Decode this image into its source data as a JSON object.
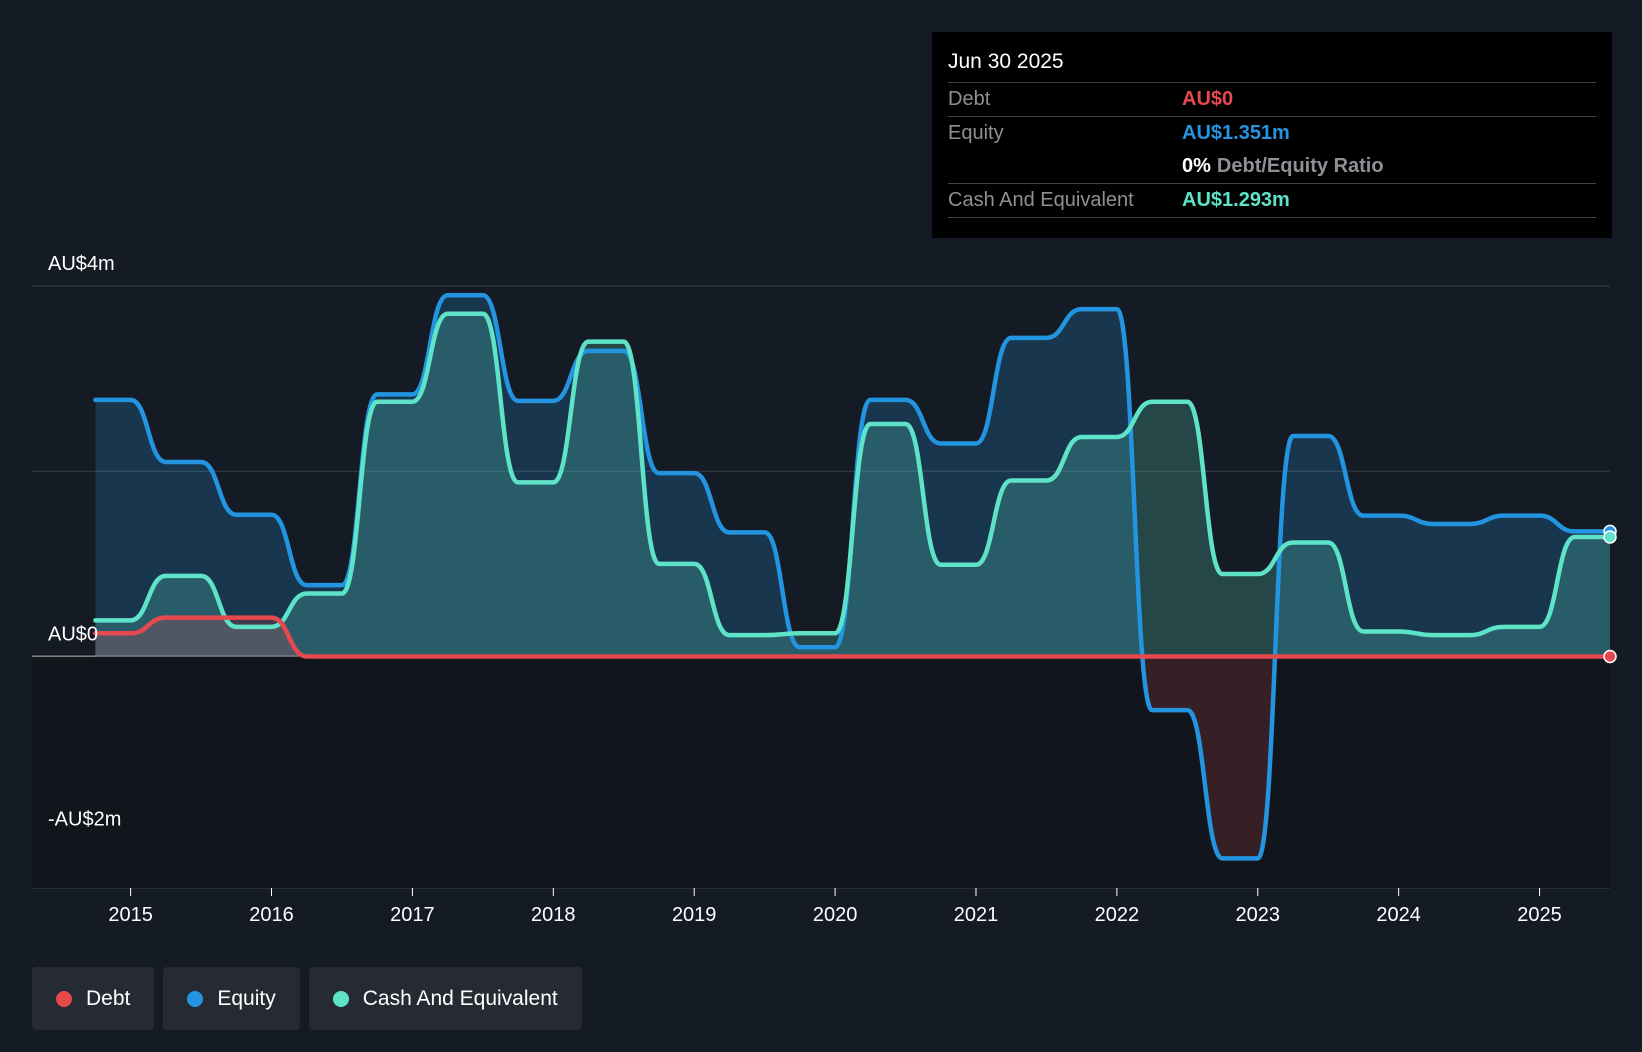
{
  "tooltip": {
    "date": "Jun 30 2025",
    "debt_label": "Debt",
    "debt_value": "AU$0",
    "equity_label": "Equity",
    "equity_value": "AU$1.351m",
    "ratio_value": "0%",
    "ratio_label": "Debt/Equity Ratio",
    "cash_label": "Cash And Equivalent",
    "cash_value": "AU$1.293m"
  },
  "legend": [
    {
      "label": "Debt",
      "color": "#e5484d"
    },
    {
      "label": "Equity",
      "color": "#2394df"
    },
    {
      "label": "Cash And Equivalent",
      "color": "#5ee3c9"
    }
  ],
  "chart_data": {
    "type": "line",
    "title": "",
    "ylim": [
      -2.5,
      4.0
    ],
    "yticks": [
      {
        "value": 4,
        "label": "AU$4m"
      },
      {
        "value": 0,
        "label": "AU$0"
      },
      {
        "value": -2,
        "label": "-AU$2m"
      }
    ],
    "xticks": [
      {
        "value": 2015,
        "label": "2015"
      },
      {
        "value": 2016,
        "label": "2016"
      },
      {
        "value": 2017,
        "label": "2017"
      },
      {
        "value": 2018,
        "label": "2018"
      },
      {
        "value": 2019,
        "label": "2019"
      },
      {
        "value": 2020,
        "label": "2020"
      },
      {
        "value": 2021,
        "label": "2021"
      },
      {
        "value": 2022,
        "label": "2022"
      },
      {
        "value": 2023,
        "label": "2023"
      },
      {
        "value": 2024,
        "label": "2024"
      },
      {
        "value": 2025,
        "label": "2025"
      }
    ],
    "xlim": [
      2014.3,
      2025.5
    ],
    "grid": true,
    "series": [
      {
        "name": "Debt",
        "color": "#e5484d",
        "points": [
          [
            2014.75,
            0.25
          ],
          [
            2015.0,
            0.25
          ],
          [
            2015.25,
            0.42
          ],
          [
            2015.5,
            0.42
          ],
          [
            2015.75,
            0.42
          ],
          [
            2016.0,
            0.42
          ],
          [
            2016.25,
            0.0
          ],
          [
            2016.5,
            0.0
          ],
          [
            2016.75,
            0.0
          ],
          [
            2017.0,
            0.0
          ],
          [
            2018.0,
            0.0
          ],
          [
            2019.0,
            0.0
          ],
          [
            2020.0,
            0.0
          ],
          [
            2021.0,
            0.0
          ],
          [
            2022.0,
            0.0
          ],
          [
            2023.0,
            0.0
          ],
          [
            2024.0,
            0.0
          ],
          [
            2025.0,
            0.0
          ],
          [
            2025.5,
            0.0
          ]
        ]
      },
      {
        "name": "Equity",
        "color": "#2394df",
        "points": [
          [
            2014.75,
            2.77
          ],
          [
            2015.0,
            2.77
          ],
          [
            2015.25,
            2.1
          ],
          [
            2015.5,
            2.1
          ],
          [
            2015.75,
            1.53
          ],
          [
            2016.0,
            1.53
          ],
          [
            2016.25,
            0.77
          ],
          [
            2016.5,
            0.77
          ],
          [
            2016.75,
            2.83
          ],
          [
            2017.0,
            2.83
          ],
          [
            2017.25,
            3.9
          ],
          [
            2017.5,
            3.9
          ],
          [
            2017.75,
            2.76
          ],
          [
            2018.0,
            2.76
          ],
          [
            2018.25,
            3.3
          ],
          [
            2018.5,
            3.3
          ],
          [
            2018.75,
            1.98
          ],
          [
            2019.0,
            1.98
          ],
          [
            2019.25,
            1.34
          ],
          [
            2019.5,
            1.34
          ],
          [
            2019.75,
            0.1
          ],
          [
            2020.0,
            0.1
          ],
          [
            2020.25,
            2.77
          ],
          [
            2020.5,
            2.77
          ],
          [
            2020.75,
            2.3
          ],
          [
            2021.0,
            2.3
          ],
          [
            2021.25,
            3.44
          ],
          [
            2021.5,
            3.44
          ],
          [
            2021.75,
            3.75
          ],
          [
            2022.0,
            3.75
          ],
          [
            2022.25,
            -0.58
          ],
          [
            2022.5,
            -0.58
          ],
          [
            2022.75,
            -2.18
          ],
          [
            2023.0,
            -2.18
          ],
          [
            2023.25,
            2.38
          ],
          [
            2023.5,
            2.38
          ],
          [
            2023.75,
            1.52
          ],
          [
            2024.0,
            1.52
          ],
          [
            2024.25,
            1.43
          ],
          [
            2024.5,
            1.43
          ],
          [
            2024.75,
            1.52
          ],
          [
            2025.0,
            1.52
          ],
          [
            2025.25,
            1.35
          ],
          [
            2025.5,
            1.35
          ]
        ]
      },
      {
        "name": "Cash And Equivalent",
        "color": "#5ee3c9",
        "points": [
          [
            2014.75,
            0.39
          ],
          [
            2015.0,
            0.39
          ],
          [
            2015.25,
            0.87
          ],
          [
            2015.5,
            0.87
          ],
          [
            2015.75,
            0.32
          ],
          [
            2016.0,
            0.32
          ],
          [
            2016.25,
            0.68
          ],
          [
            2016.5,
            0.68
          ],
          [
            2016.75,
            2.75
          ],
          [
            2017.0,
            2.75
          ],
          [
            2017.25,
            3.7
          ],
          [
            2017.5,
            3.7
          ],
          [
            2017.75,
            1.88
          ],
          [
            2018.0,
            1.88
          ],
          [
            2018.25,
            3.4
          ],
          [
            2018.5,
            3.4
          ],
          [
            2018.75,
            1.0
          ],
          [
            2019.0,
            1.0
          ],
          [
            2019.25,
            0.23
          ],
          [
            2019.5,
            0.23
          ],
          [
            2019.75,
            0.25
          ],
          [
            2020.0,
            0.25
          ],
          [
            2020.25,
            2.51
          ],
          [
            2020.5,
            2.51
          ],
          [
            2020.75,
            0.99
          ],
          [
            2021.0,
            0.99
          ],
          [
            2021.25,
            1.9
          ],
          [
            2021.5,
            1.9
          ],
          [
            2021.75,
            2.37
          ],
          [
            2022.0,
            2.37
          ],
          [
            2022.25,
            2.75
          ],
          [
            2022.5,
            2.75
          ],
          [
            2022.75,
            0.89
          ],
          [
            2023.0,
            0.89
          ],
          [
            2023.25,
            1.23
          ],
          [
            2023.5,
            1.23
          ],
          [
            2023.75,
            0.27
          ],
          [
            2024.0,
            0.27
          ],
          [
            2024.25,
            0.23
          ],
          [
            2024.5,
            0.23
          ],
          [
            2024.75,
            0.32
          ],
          [
            2025.0,
            0.32
          ],
          [
            2025.25,
            1.29
          ],
          [
            2025.5,
            1.29
          ]
        ]
      }
    ]
  }
}
